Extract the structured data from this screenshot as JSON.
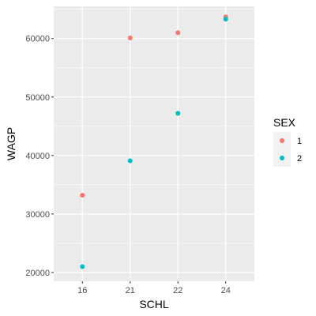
{
  "chart_data": {
    "type": "scatter",
    "xlabel": "SCHL",
    "ylabel": "WAGP",
    "categories": [
      "16",
      "21",
      "22",
      "24"
    ],
    "ylim": [
      18500,
      65500
    ],
    "yticks": [
      20000,
      30000,
      40000,
      50000,
      60000
    ],
    "ytick_labels": [
      "20000",
      "30000",
      "40000",
      "50000",
      "60000"
    ],
    "grid": true,
    "legend": {
      "title": "SEX",
      "placement": "right",
      "entries": [
        "1",
        "2"
      ]
    },
    "series": [
      {
        "name": "1",
        "color": "#F8766D",
        "values": [
          33200,
          60100,
          61000,
          63700
        ]
      },
      {
        "name": "2",
        "color": "#00BFC4",
        "values": [
          21000,
          39100,
          47200,
          63300
        ]
      }
    ],
    "panel_background": "#EBEBEB",
    "grid_color": "#FFFFFF"
  }
}
